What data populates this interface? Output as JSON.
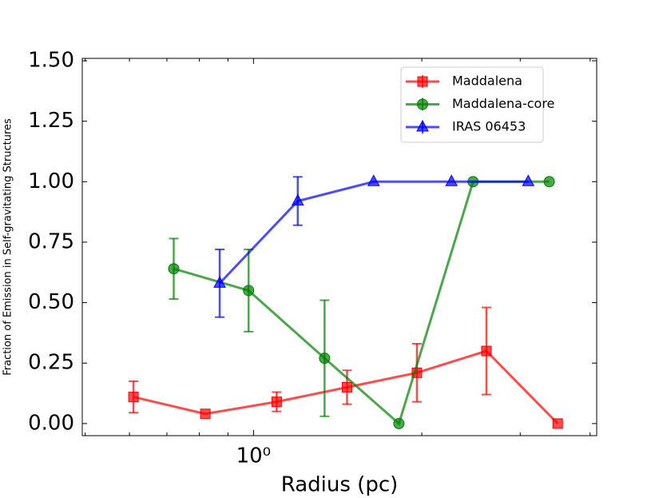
{
  "chart_data": {
    "type": "errorbar-line",
    "xlabel": "Radius (pc)",
    "ylabel": "Fraction of Emission in Self-gravitating Structures",
    "xscale": "log",
    "xlim": [
      0.494,
      4.11
    ],
    "xticks": [
      {
        "value": 1,
        "label": "10⁰"
      }
    ],
    "xminor_ticks": [
      0.5,
      0.6,
      0.7,
      0.8,
      0.9,
      2,
      3,
      4
    ],
    "ylim": [
      -0.05,
      1.51
    ],
    "yticks": [
      {
        "value": 0,
        "label": "0.00"
      },
      {
        "value": 0.25,
        "label": "0.25"
      },
      {
        "value": 0.5,
        "label": "0.50"
      },
      {
        "value": 0.75,
        "label": "0.75"
      },
      {
        "value": 1,
        "label": "1.00"
      },
      {
        "value": 1.25,
        "label": "1.25"
      },
      {
        "value": 1.5,
        "label": "1.50"
      }
    ],
    "legend": "upper right",
    "series": [
      {
        "name": "Maddalena",
        "color": "#ff0000",
        "marker": "square",
        "x": [
          0.61,
          0.82,
          1.1,
          1.47,
          1.96,
          2.61,
          3.5
        ],
        "values": [
          0.11,
          0.04,
          0.09,
          0.15,
          0.21,
          0.3,
          0.0
        ],
        "errors": [
          0.065,
          0,
          0.04,
          0.07,
          0.12,
          0.18,
          0
        ]
      },
      {
        "name": "Maddalena-core",
        "color": "#008000",
        "marker": "circle",
        "x": [
          0.72,
          0.98,
          1.34,
          1.82,
          2.47,
          3.38
        ],
        "values": [
          0.64,
          0.55,
          0.27,
          0.0,
          1.0,
          1.0
        ],
        "errors": [
          0.125,
          0.17,
          0.24,
          0,
          0,
          0
        ]
      },
      {
        "name": "IRAS 06453",
        "color": "#0000ff",
        "marker": "triangle",
        "x": [
          0.87,
          1.2,
          1.64,
          2.26,
          3.1
        ],
        "values": [
          0.58,
          0.92,
          1.0,
          1.0,
          1.0
        ],
        "errors": [
          0.14,
          0.1,
          0,
          0,
          0
        ]
      }
    ]
  }
}
